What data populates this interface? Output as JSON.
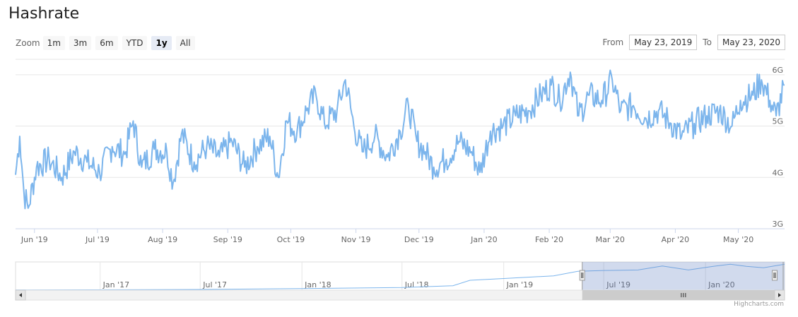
{
  "title": "Hashrate",
  "zoom": {
    "label": "Zoom",
    "buttons": [
      "1m",
      "3m",
      "6m",
      "YTD",
      "1y",
      "All"
    ],
    "active": "1y"
  },
  "range": {
    "from_label": "From",
    "from_value": "May 23, 2019",
    "to_label": "To",
    "to_value": "May 23, 2020"
  },
  "credits": "Highcharts.com",
  "colors": {
    "line": "#7cb5ec",
    "grid": "#e6e6e6",
    "navigator_mask": "rgba(102,133,194,0.3)"
  },
  "chart_data": {
    "type": "line",
    "title": "Hashrate",
    "xlabel": "",
    "ylabel": "",
    "x_start": "2019-05-23",
    "x_end": "2020-05-23",
    "ylim": [
      3,
      6.3
    ],
    "y_ticks": [
      {
        "value": 3,
        "label": "3G"
      },
      {
        "value": 4,
        "label": "4G"
      },
      {
        "value": 5,
        "label": "5G"
      },
      {
        "value": 6,
        "label": "6G"
      }
    ],
    "x_ticks": [
      {
        "date": "2019-06-01",
        "label": "Jun '19"
      },
      {
        "date": "2019-07-01",
        "label": "Jul '19"
      },
      {
        "date": "2019-08-01",
        "label": "Aug '19"
      },
      {
        "date": "2019-09-01",
        "label": "Sep '19"
      },
      {
        "date": "2019-10-01",
        "label": "Oct '19"
      },
      {
        "date": "2019-11-01",
        "label": "Nov '19"
      },
      {
        "date": "2019-12-01",
        "label": "Dec '19"
      },
      {
        "date": "2020-01-01",
        "label": "Jan '20"
      },
      {
        "date": "2020-02-01",
        "label": "Feb '20"
      },
      {
        "date": "2020-03-01",
        "label": "Mar '20"
      },
      {
        "date": "2020-04-01",
        "label": "Apr '20"
      },
      {
        "date": "2020-05-01",
        "label": "May '20"
      }
    ],
    "series": [
      {
        "name": "Hashrate",
        "points": [
          [
            "2019-05-23",
            4.05
          ],
          [
            "2019-05-25",
            4.8
          ],
          [
            "2019-05-27",
            3.7
          ],
          [
            "2019-05-29",
            3.4
          ],
          [
            "2019-06-02",
            4.2
          ],
          [
            "2019-06-08",
            4.35
          ],
          [
            "2019-06-14",
            4.0
          ],
          [
            "2019-06-20",
            4.5
          ],
          [
            "2019-06-26",
            4.3
          ],
          [
            "2019-07-02",
            4.1
          ],
          [
            "2019-07-08",
            4.6
          ],
          [
            "2019-07-14",
            4.45
          ],
          [
            "2019-07-18",
            5.1
          ],
          [
            "2019-07-22",
            4.2
          ],
          [
            "2019-07-28",
            4.55
          ],
          [
            "2019-08-03",
            4.5
          ],
          [
            "2019-08-06",
            3.9
          ],
          [
            "2019-08-10",
            4.85
          ],
          [
            "2019-08-16",
            4.3
          ],
          [
            "2019-08-22",
            4.6
          ],
          [
            "2019-08-28",
            4.4
          ],
          [
            "2019-09-03",
            4.7
          ],
          [
            "2019-09-09",
            4.2
          ],
          [
            "2019-09-15",
            4.6
          ],
          [
            "2019-09-21",
            4.8
          ],
          [
            "2019-09-25",
            4.0
          ],
          [
            "2019-09-29",
            5.1
          ],
          [
            "2019-10-04",
            4.9
          ],
          [
            "2019-10-09",
            5.35
          ],
          [
            "2019-10-13",
            5.6
          ],
          [
            "2019-10-17",
            5.05
          ],
          [
            "2019-10-23",
            5.3
          ],
          [
            "2019-10-27",
            5.9
          ],
          [
            "2019-10-31",
            5.0
          ],
          [
            "2019-11-04",
            4.5
          ],
          [
            "2019-11-10",
            4.8
          ],
          [
            "2019-11-16",
            4.4
          ],
          [
            "2019-11-22",
            4.9
          ],
          [
            "2019-11-26",
            5.4
          ],
          [
            "2019-11-30",
            4.7
          ],
          [
            "2019-12-04",
            4.5
          ],
          [
            "2019-12-08",
            4.2
          ],
          [
            "2019-12-14",
            4.35
          ],
          [
            "2019-12-20",
            4.7
          ],
          [
            "2019-12-26",
            4.5
          ],
          [
            "2019-12-30",
            4.1
          ],
          [
            "2020-01-04",
            4.9
          ],
          [
            "2020-01-10",
            5.0
          ],
          [
            "2020-01-16",
            5.2
          ],
          [
            "2020-01-22",
            5.3
          ],
          [
            "2020-01-28",
            5.6
          ],
          [
            "2020-02-02",
            5.8
          ],
          [
            "2020-02-06",
            5.5
          ],
          [
            "2020-02-11",
            6.05
          ],
          [
            "2020-02-15",
            5.2
          ],
          [
            "2020-02-20",
            5.6
          ],
          [
            "2020-02-26",
            5.5
          ],
          [
            "2020-03-02",
            5.9
          ],
          [
            "2020-03-06",
            5.3
          ],
          [
            "2020-03-12",
            5.4
          ],
          [
            "2020-03-18",
            5.15
          ],
          [
            "2020-03-24",
            5.3
          ],
          [
            "2020-03-30",
            5.05
          ],
          [
            "2020-04-04",
            4.8
          ],
          [
            "2020-04-10",
            5.05
          ],
          [
            "2020-04-16",
            5.2
          ],
          [
            "2020-04-22",
            5.3
          ],
          [
            "2020-04-28",
            5.0
          ],
          [
            "2020-05-02",
            5.5
          ],
          [
            "2020-05-08",
            5.6
          ],
          [
            "2020-05-12",
            5.9
          ],
          [
            "2020-05-16",
            5.5
          ],
          [
            "2020-05-19",
            5.2
          ],
          [
            "2020-05-23",
            5.8
          ]
        ]
      }
    ]
  },
  "navigator": {
    "x_ticks": [
      {
        "date": "2017-01-01",
        "label": "Jan '17"
      },
      {
        "date": "2017-07-01",
        "label": "Jul '17"
      },
      {
        "date": "2018-01-01",
        "label": "Jan '18"
      },
      {
        "date": "2018-07-01",
        "label": "Jul '18"
      },
      {
        "date": "2019-01-01",
        "label": "Jan '19"
      },
      {
        "date": "2019-07-01",
        "label": "Jul '19"
      },
      {
        "date": "2020-01-01",
        "label": "Jan '20"
      }
    ],
    "x_start": "2016-08-01",
    "x_end": "2020-05-23",
    "ylim": [
      0,
      6.3
    ],
    "selection": [
      "2019-05-23",
      "2020-05-23"
    ],
    "series": [
      [
        "2016-08-01",
        0.05
      ],
      [
        "2017-01-01",
        0.08
      ],
      [
        "2017-07-01",
        0.15
      ],
      [
        "2018-01-01",
        0.35
      ],
      [
        "2018-07-01",
        0.6
      ],
      [
        "2018-10-01",
        1.0
      ],
      [
        "2018-11-01",
        2.2
      ],
      [
        "2019-01-01",
        2.6
      ],
      [
        "2019-04-01",
        3.2
      ],
      [
        "2019-05-15",
        4.2
      ],
      [
        "2019-07-01",
        4.4
      ],
      [
        "2019-09-01",
        4.5
      ],
      [
        "2019-10-15",
        5.4
      ],
      [
        "2019-12-01",
        4.5
      ],
      [
        "2020-01-15",
        5.3
      ],
      [
        "2020-02-15",
        5.8
      ],
      [
        "2020-03-15",
        5.3
      ],
      [
        "2020-04-15",
        5.0
      ],
      [
        "2020-05-23",
        5.8
      ]
    ]
  }
}
